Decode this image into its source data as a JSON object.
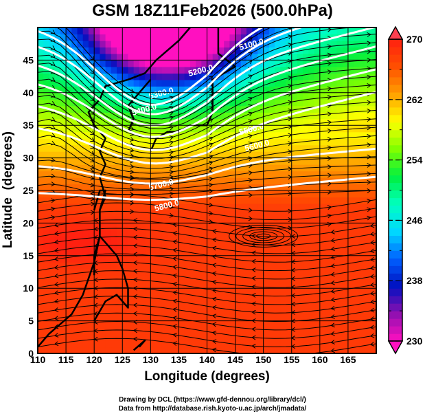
{
  "title": "GSM 18Z11Feb2026 (500.0hPa)",
  "credits": {
    "line1": "Drawing by DCL (https://www.gfd-dennou.org/library/dcl/)",
    "line2": "Data from http://database.rish.kyoto-u.ac.jp/arch/jmadata/"
  },
  "chart_data": {
    "type": "heatmap",
    "title": "GSM 18Z11Feb2026 (500.0hPa)",
    "xlabel": "Longitude (degrees)",
    "ylabel": "Latitude  (degrees)",
    "xlim": [
      110,
      170
    ],
    "ylim": [
      0,
      50
    ],
    "xticks": [
      110,
      115,
      120,
      125,
      130,
      135,
      140,
      145,
      150,
      155,
      160,
      165
    ],
    "yticks": [
      0,
      5,
      10,
      15,
      20,
      25,
      30,
      35,
      40,
      45
    ],
    "grid": true,
    "shaded_field": "temperature (K)",
    "colorbar": {
      "min": 230,
      "max": 270,
      "ticks": [
        230,
        238,
        246,
        254,
        262,
        270
      ],
      "extend": "both",
      "placement": "right",
      "colors": [
        "#ff10c0",
        "#9010b0",
        "#0010c0",
        "#0060ff",
        "#00d8ff",
        "#00ffc0",
        "#00f040",
        "#80ff00",
        "#ffff00",
        "#ffa000",
        "#ff5000",
        "#ff2010"
      ],
      "under_color": "#ff10c0",
      "over_color": "#ff4050"
    },
    "contours": {
      "field": "geopotential height (m)",
      "color": "#ffffff",
      "levels": [
        5100.0,
        5200.0,
        5300.0,
        5400.0,
        5500.0,
        5600.0,
        5700.0,
        5800.0
      ],
      "labels": [
        "5100.0",
        "5200.0",
        "5300.0",
        "5400.0",
        "5500.0",
        "5600.0",
        "5700.0",
        "5800.0"
      ]
    },
    "overlay": "wind streamlines",
    "features": [
      "coastlines",
      "anticyclonic circulation near 150E 18N"
    ]
  }
}
